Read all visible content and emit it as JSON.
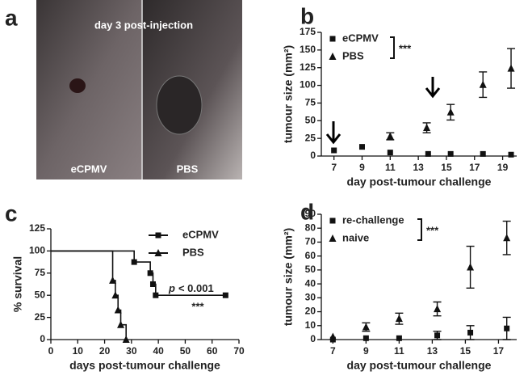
{
  "image": {
    "label": "a",
    "caption": "day 3 post-injection",
    "left_label": "eCPMV",
    "right_label": "PBS"
  },
  "chart_data": [
    {
      "type": "scatter",
      "label": "b",
      "ylabel": "tumour size (mm²)",
      "xlabel": "day post-tumour challenge",
      "xlim": [
        6.1,
        20
      ],
      "xticks": [
        7,
        9,
        11,
        13,
        15,
        17,
        19
      ],
      "ylim": [
        0,
        175
      ],
      "yticks": [
        0,
        25,
        50,
        75,
        100,
        125,
        150,
        175
      ],
      "legend": "upper left",
      "significance": "***",
      "series": [
        {
          "name": "eCPMV",
          "marker": "square",
          "color": "#111111",
          "x": [
            7,
            9,
            11,
            13.7,
            15.3,
            17.6,
            19.6
          ],
          "values": [
            8,
            13,
            5,
            3,
            3,
            3,
            2
          ]
        },
        {
          "name": "PBS",
          "marker": "triangle",
          "color": "#111111",
          "x": [
            11,
            13.6,
            15.3,
            17.6,
            19.6
          ],
          "values": [
            28,
            40,
            62,
            101,
            124
          ],
          "errors": [
            5,
            7,
            11,
            18,
            28
          ]
        }
      ]
    },
    {
      "type": "step",
      "label": "c",
      "ylabel": "% survival",
      "xlabel": "days post-tumour challenge",
      "xlim": [
        0,
        70
      ],
      "xticks": [
        0,
        10,
        20,
        30,
        40,
        50,
        60,
        70
      ],
      "ylim": [
        0,
        125
      ],
      "yticks": [
        0,
        25,
        50,
        75,
        100,
        125
      ],
      "legend": "upper right",
      "annotation": {
        "symbol": "p",
        "text": "< 0.001",
        "stars": "***"
      },
      "series": [
        {
          "name": "eCPMV",
          "marker": "square",
          "color": "#111111",
          "x": [
            0,
            31,
            37,
            38,
            39,
            65
          ],
          "values": [
            100,
            87.5,
            75,
            62.5,
            50,
            50
          ]
        },
        {
          "name": "PBS",
          "marker": "triangle",
          "color": "#111111",
          "x": [
            0,
            23,
            24,
            25,
            26,
            28
          ],
          "values": [
            100,
            66.7,
            50,
            33.3,
            16.7,
            0
          ]
        }
      ]
    },
    {
      "type": "scatter",
      "label": "d",
      "ylabel": "tumour size (mm²)",
      "xlabel": "day post-tumour challenge",
      "xlim": [
        6.3,
        18.1
      ],
      "xticks": [
        7,
        9,
        11,
        13,
        15,
        17
      ],
      "ylim": [
        0,
        90
      ],
      "yticks": [
        0,
        10,
        20,
        30,
        40,
        50,
        60,
        70,
        80,
        90
      ],
      "legend": "upper left",
      "significance": "***",
      "series": [
        {
          "name": "re-challenge",
          "marker": "square",
          "color": "#111111",
          "x": [
            7,
            9,
            11,
            13.3,
            15.3,
            17.5
          ],
          "values": [
            0,
            1,
            1,
            3,
            5,
            8
          ],
          "errors": [
            null,
            null,
            null,
            3,
            5,
            8
          ]
        },
        {
          "name": "naive",
          "marker": "triangle",
          "color": "#111111",
          "x": [
            7,
            9,
            11,
            13.3,
            15.3,
            17.5
          ],
          "values": [
            2,
            9,
            15,
            22,
            52,
            73
          ],
          "errors": [
            null,
            3,
            4,
            5,
            15,
            12
          ]
        }
      ]
    }
  ]
}
